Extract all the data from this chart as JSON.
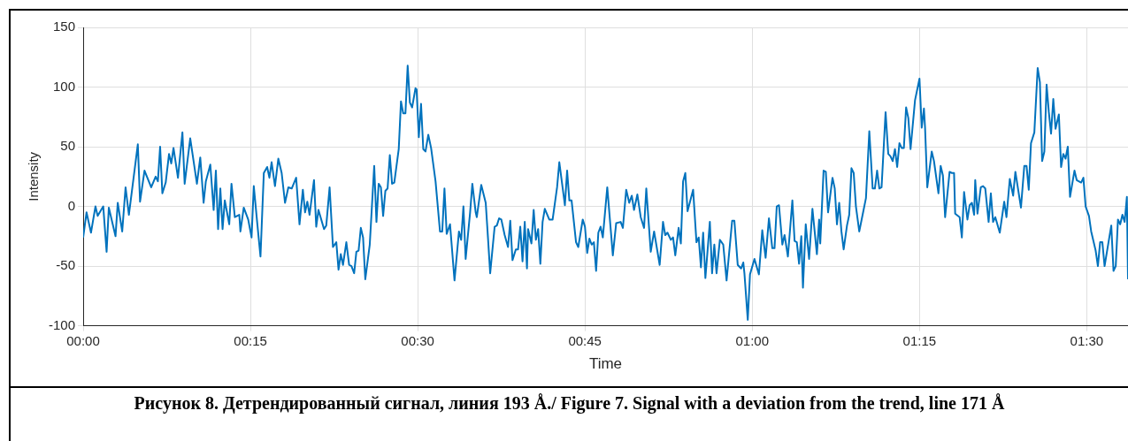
{
  "chart_data": {
    "type": "line",
    "xlabel": "Time",
    "ylabel": "Intensity",
    "annotations": [
      "Рисунок 8. Детрендированный сигнал, линия 193 Å./ Figure 7. Signal with a deviation from the trend, line 171 Å"
    ],
    "xlim": [
      0,
      93.7
    ],
    "ylim": [
      -100,
      150
    ],
    "xticks": [
      {
        "value": 0,
        "label": "00:00"
      },
      {
        "value": 15,
        "label": "00:15"
      },
      {
        "value": 30,
        "label": "00:30"
      },
      {
        "value": 45,
        "label": "00:45"
      },
      {
        "value": 60,
        "label": "01:00"
      },
      {
        "value": 75,
        "label": "01:15"
      },
      {
        "value": 90,
        "label": "01:30"
      }
    ],
    "yticks": [
      -100,
      -50,
      0,
      50,
      100,
      150
    ],
    "grid": true,
    "legend": false,
    "marker": "none",
    "line_style": "solid",
    "series": [
      {
        "color": "#0072bd",
        "x": [
          0,
          0.3,
          0.7,
          1.1,
          1.3,
          1.8,
          2.1,
          2.3,
          2.9,
          3.1,
          3.5,
          3.8,
          4.1,
          4.9,
          5.1,
          5.5,
          6.1,
          6.5,
          6.7,
          6.9,
          7.1,
          7.4,
          7.7,
          7.9,
          8.1,
          8.5,
          8.9,
          9.1,
          9.6,
          10.2,
          10.5,
          10.8,
          11,
          11.4,
          11.7,
          11.9,
          12.1,
          12.3,
          12.5,
          12.7,
          13.1,
          13.3,
          13.6,
          14,
          14.1,
          14.4,
          14.8,
          15.1,
          15.3,
          15.6,
          15.9,
          16.2,
          16.5,
          16.7,
          16.9,
          17.2,
          17.5,
          17.8,
          18.1,
          18.4,
          18.7,
          19.1,
          19.4,
          19.7,
          19.9,
          20.1,
          20.3,
          20.7,
          20.9,
          21.1,
          21.6,
          21.8,
          22.1,
          22.4,
          22.7,
          22.9,
          23.1,
          23.3,
          23.6,
          23.85,
          24.06,
          24.3,
          24.5,
          24.7,
          24.9,
          25.1,
          25.3,
          25.7,
          26.1,
          26.3,
          26.5,
          26.7,
          26.9,
          27.1,
          27.3,
          27.5,
          27.7,
          27.9,
          28.3,
          28.5,
          28.7,
          28.9,
          29.1,
          29.3,
          29.5,
          29.8,
          29.9,
          30.1,
          30.3,
          30.5,
          30.7,
          30.95,
          31.2,
          31.6,
          32,
          32.2,
          32.4,
          32.6,
          32.9,
          33.3,
          33.7,
          33.9,
          34.1,
          34.3,
          34.7,
          34.9,
          35.2,
          35.3,
          35.7,
          36.1,
          36.3,
          36.5,
          36.9,
          37.1,
          37.3,
          37.5,
          37.8,
          38.1,
          38.3,
          38.5,
          38.8,
          39,
          39.2,
          39.4,
          39.6,
          39.8,
          39.9,
          40.2,
          40.4,
          40.6,
          40.8,
          41,
          41.2,
          41.4,
          41.8,
          42.1,
          42.5,
          42.7,
          43.2,
          43.4,
          43.6,
          43.8,
          44.2,
          44.4,
          44.8,
          45,
          45.2,
          45.4,
          45.6,
          45.8,
          46,
          46.2,
          46.4,
          46.6,
          47,
          47.5,
          47.8,
          48.2,
          48.4,
          48.7,
          48.97,
          49.2,
          49.4,
          49.7,
          50,
          50.3,
          50.5,
          50.9,
          51.2,
          51.7,
          52,
          52.2,
          52.4,
          52.7,
          52.9,
          53.1,
          53.4,
          53.6,
          53.8,
          54,
          54.2,
          54.7,
          55,
          55.2,
          55.4,
          55.6,
          55.8,
          56.2,
          56.4,
          56.6,
          56.8,
          57.1,
          57.4,
          57.7,
          58.2,
          58.4,
          58.7,
          59,
          59.2,
          59.3,
          59.6,
          59.8,
          60.2,
          60.6,
          60.9,
          61.2,
          61.5,
          61.8,
          62,
          62.2,
          62.4,
          62.7,
          62.9,
          63.2,
          63.6,
          63.8,
          64,
          64.2,
          64.4,
          64.55,
          64.8,
          65.1,
          65.4,
          65.8,
          66,
          66.1,
          66.4,
          66.6,
          66.8,
          67.2,
          67.4,
          67.6,
          67.8,
          68,
          68.2,
          68.5,
          68.7,
          68.9,
          69.1,
          69.3,
          69.6,
          69.9,
          70.2,
          70.5,
          70.8,
          71,
          71.2,
          71.4,
          71.6,
          71.96,
          72.2,
          72.4,
          72.6,
          72.8,
          73,
          73.2,
          73.4,
          73.6,
          73.8,
          74,
          74.2,
          74.6,
          75,
          75.2,
          75.4,
          75.5,
          75.7,
          76.1,
          76.3,
          76.7,
          76.9,
          77.1,
          77.3,
          77.7,
          77.9,
          78.1,
          78.2,
          78.6,
          78.8,
          79,
          79.3,
          79.5,
          79.7,
          79.9,
          80,
          80.2,
          80.5,
          80.7,
          80.9,
          81.2,
          81.4,
          81.6,
          81.8,
          82.2,
          82.6,
          82.8,
          83.1,
          83.4,
          83.6,
          84.1,
          84.4,
          84.6,
          84.8,
          85,
          85.3,
          85.6,
          85.8,
          86,
          86.2,
          86.4,
          86.6,
          86.8,
          87,
          87.2,
          87.5,
          87.7,
          87.9,
          88.1,
          88.3,
          88.5,
          88.9,
          89.1,
          89.5,
          89.7,
          89.9,
          90.2,
          90.4,
          90.8,
          91,
          91.2,
          91.4,
          91.6,
          92.2,
          92.4,
          92.6,
          92.8,
          93,
          93.2,
          93.4,
          93.6,
          93.7
        ],
        "values": [
          -26,
          -5,
          -22,
          0,
          -8,
          0,
          -38,
          -1,
          -25,
          3,
          -21,
          16,
          -7,
          52,
          4,
          30,
          16,
          25,
          21,
          50,
          11,
          20,
          44,
          36,
          49,
          24,
          62,
          19,
          57,
          19,
          41,
          3,
          21,
          35,
          -3,
          30,
          -19,
          15,
          -19,
          5,
          -15,
          19,
          -9,
          -7,
          -21,
          -1,
          -11,
          -26,
          17,
          -13,
          -42,
          28,
          33,
          24,
          37,
          17,
          40,
          28,
          3,
          16,
          15,
          24,
          -15,
          14,
          -5,
          4,
          -7,
          22,
          -17,
          -3,
          -19,
          -16,
          16,
          -34,
          -30,
          -53,
          -40,
          -49,
          -30,
          -49,
          -50,
          -56,
          -38,
          -37,
          -18,
          -26,
          -61,
          -32,
          34,
          -13,
          19,
          16,
          -8,
          13,
          15,
          43,
          19,
          20,
          48,
          88,
          78,
          78,
          118,
          87,
          83,
          99,
          98,
          58,
          86,
          48,
          46,
          60,
          49,
          21,
          -21,
          -21,
          15,
          -23,
          -15,
          -62,
          -21,
          -28,
          0,
          -44,
          -5,
          19,
          -5,
          -9,
          18,
          3,
          -26,
          -56,
          -17,
          -16,
          -10,
          -11,
          -24,
          -34,
          -12,
          -45,
          -36,
          -36,
          -17,
          -46,
          -13,
          -52,
          -19,
          -31,
          -3,
          -28,
          -19,
          -48,
          -13,
          -2,
          -11,
          -11,
          16,
          37,
          1,
          30,
          5,
          5,
          -30,
          -34,
          -11,
          -17,
          -39,
          -27,
          -32,
          -30,
          -54,
          -22,
          -17,
          -26,
          16,
          -41,
          -14,
          -13,
          -18,
          14,
          3,
          9,
          -3,
          10,
          -9,
          -18,
          15,
          -38,
          -21,
          -49,
          -13,
          -24,
          -22,
          -28,
          -26,
          -41,
          -18,
          -31,
          21,
          28,
          -4,
          14,
          -30,
          -26,
          -51,
          -22,
          -60,
          -13,
          -56,
          -32,
          -56,
          -28,
          -32,
          -62,
          -12,
          -12,
          -49,
          -52,
          -47,
          -56,
          -95,
          -57,
          -44,
          -57,
          -20,
          -43,
          -10,
          -35,
          -35,
          0,
          1,
          -32,
          -24,
          -42,
          5,
          -29,
          -30,
          -48,
          -25,
          -68,
          -15,
          -44,
          -2,
          -40,
          -11,
          -31,
          30,
          29,
          -5,
          24,
          15,
          -15,
          3,
          -21,
          -36,
          -16,
          -7,
          32,
          28,
          0,
          -21,
          -7,
          7,
          63,
          15,
          15,
          30,
          15,
          16,
          79,
          44,
          42,
          38,
          48,
          33,
          53,
          49,
          49,
          83,
          74,
          48,
          89,
          107,
          66,
          82,
          66,
          16,
          46,
          38,
          11,
          34,
          26,
          -9,
          29,
          28,
          28,
          -6,
          -9,
          -26,
          12,
          -11,
          1,
          3,
          -7,
          22,
          -6,
          16,
          17,
          15,
          -13,
          11,
          -13,
          -9,
          -22,
          4,
          -9,
          23,
          9,
          29,
          -1,
          34,
          34,
          14,
          53,
          62,
          116,
          104,
          38,
          46,
          102,
          79,
          61,
          90,
          65,
          77,
          33,
          44,
          40,
          50,
          8,
          30,
          22,
          20,
          24,
          0,
          -8,
          -21,
          -37,
          -50,
          -30,
          -30,
          -50,
          -16,
          -54,
          -50,
          -11,
          -15,
          -7,
          -13,
          8,
          -61
        ]
      }
    ]
  }
}
